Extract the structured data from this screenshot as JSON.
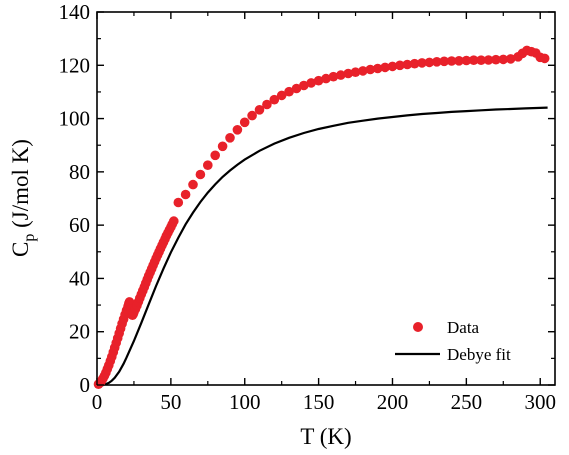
{
  "chart_data": {
    "type": "scatter",
    "title": "",
    "xlabel": "T (K)",
    "ylabel_main": "C",
    "ylabel_sub": "p",
    "ylabel_rest": " (J/mol K)",
    "xlim": [
      0,
      310
    ],
    "ylim": [
      0,
      140
    ],
    "xticks": [
      0,
      50,
      100,
      150,
      200,
      250,
      300
    ],
    "yticks": [
      0,
      20,
      40,
      60,
      80,
      100,
      120,
      140
    ],
    "legend_position": "bottom-right",
    "series": [
      {
        "name": "Data",
        "kind": "scatter",
        "color": "#e8212a",
        "points": [
          [
            1,
            0.3
          ],
          [
            2,
            0.8
          ],
          [
            3,
            1.5
          ],
          [
            4,
            2.4
          ],
          [
            5,
            3.4
          ],
          [
            6,
            4.6
          ],
          [
            7,
            6.0
          ],
          [
            8,
            7.4
          ],
          [
            9,
            9.0
          ],
          [
            10,
            10.6
          ],
          [
            11,
            12.3
          ],
          [
            12,
            14.0
          ],
          [
            13,
            15.8
          ],
          [
            14,
            17.6
          ],
          [
            15,
            19.4
          ],
          [
            16,
            21.2
          ],
          [
            17,
            23.0
          ],
          [
            18,
            24.7
          ],
          [
            19,
            26.4
          ],
          [
            20,
            28.0
          ],
          [
            21,
            29.5
          ],
          [
            21.5,
            30.6
          ],
          [
            22,
            31.2
          ],
          [
            22.5,
            30.4
          ],
          [
            23,
            28.5
          ],
          [
            23.5,
            26.8
          ],
          [
            24,
            26.2
          ],
          [
            24.5,
            26.6
          ],
          [
            25,
            27.3
          ],
          [
            26,
            28.5
          ],
          [
            27,
            29.8
          ],
          [
            28,
            31.2
          ],
          [
            29,
            32.6
          ],
          [
            30,
            34.0
          ],
          [
            31,
            35.4
          ],
          [
            32,
            36.8
          ],
          [
            33,
            38.2
          ],
          [
            34,
            39.6
          ],
          [
            35,
            41.0
          ],
          [
            36,
            42.3
          ],
          [
            37,
            43.6
          ],
          [
            38,
            44.9
          ],
          [
            39,
            46.2
          ],
          [
            40,
            47.5
          ],
          [
            41,
            48.8
          ],
          [
            42,
            50.0
          ],
          [
            43,
            51.2
          ],
          [
            44,
            52.4
          ],
          [
            45,
            53.6
          ],
          [
            46,
            54.8
          ],
          [
            47,
            56.0
          ],
          [
            48,
            57.1
          ],
          [
            49,
            58.2
          ],
          [
            50,
            59.3
          ],
          [
            51,
            60.4
          ],
          [
            52,
            61.5
          ],
          [
            55,
            68.5
          ],
          [
            60,
            71.5
          ],
          [
            65,
            75.2
          ],
          [
            70,
            79.0
          ],
          [
            75,
            82.5
          ],
          [
            80,
            86.2
          ],
          [
            85,
            89.6
          ],
          [
            90,
            92.8
          ],
          [
            95,
            95.8
          ],
          [
            100,
            98.6
          ],
          [
            105,
            101.1
          ],
          [
            110,
            103.3
          ],
          [
            115,
            105.3
          ],
          [
            120,
            107.1
          ],
          [
            125,
            108.7
          ],
          [
            130,
            110.1
          ],
          [
            135,
            111.3
          ],
          [
            140,
            112.4
          ],
          [
            145,
            113.4
          ],
          [
            150,
            114.2
          ],
          [
            155,
            115.0
          ],
          [
            160,
            115.7
          ],
          [
            165,
            116.3
          ],
          [
            170,
            116.9
          ],
          [
            175,
            117.4
          ],
          [
            180,
            117.9
          ],
          [
            185,
            118.4
          ],
          [
            190,
            118.8
          ],
          [
            195,
            119.2
          ],
          [
            200,
            119.6
          ],
          [
            205,
            120.0
          ],
          [
            210,
            120.3
          ],
          [
            215,
            120.6
          ],
          [
            220,
            120.9
          ],
          [
            225,
            121.1
          ],
          [
            230,
            121.3
          ],
          [
            235,
            121.5
          ],
          [
            240,
            121.6
          ],
          [
            245,
            121.7
          ],
          [
            250,
            121.8
          ],
          [
            255,
            121.9
          ],
          [
            260,
            121.9
          ],
          [
            265,
            122.0
          ],
          [
            270,
            122.1
          ],
          [
            275,
            122.2
          ],
          [
            280,
            122.4
          ],
          [
            285,
            123.2
          ],
          [
            288,
            124.5
          ],
          [
            291,
            125.6
          ],
          [
            294,
            125.1
          ],
          [
            297,
            124.6
          ],
          [
            300,
            123.0
          ],
          [
            303,
            122.6
          ]
        ]
      },
      {
        "name": "Debye fit",
        "kind": "line",
        "color": "#000000",
        "points": [
          [
            0,
            0
          ],
          [
            3,
            0.05
          ],
          [
            5,
            0.2
          ],
          [
            8,
            0.8
          ],
          [
            10,
            1.6
          ],
          [
            12,
            2.7
          ],
          [
            15,
            5.0
          ],
          [
            18,
            8.0
          ],
          [
            20,
            10.3
          ],
          [
            25,
            16.5
          ],
          [
            30,
            23.3
          ],
          [
            35,
            30.3
          ],
          [
            40,
            37.2
          ],
          [
            45,
            43.7
          ],
          [
            50,
            49.8
          ],
          [
            55,
            55.3
          ],
          [
            60,
            60.3
          ],
          [
            65,
            64.7
          ],
          [
            70,
            68.7
          ],
          [
            75,
            72.2
          ],
          [
            80,
            75.3
          ],
          [
            85,
            78.1
          ],
          [
            90,
            80.5
          ],
          [
            95,
            82.7
          ],
          [
            100,
            84.6
          ],
          [
            110,
            87.9
          ],
          [
            120,
            90.6
          ],
          [
            130,
            92.8
          ],
          [
            140,
            94.6
          ],
          [
            150,
            96.1
          ],
          [
            160,
            97.3
          ],
          [
            170,
            98.4
          ],
          [
            180,
            99.2
          ],
          [
            190,
            100.0
          ],
          [
            200,
            100.6
          ],
          [
            210,
            101.2
          ],
          [
            220,
            101.7
          ],
          [
            230,
            102.1
          ],
          [
            240,
            102.5
          ],
          [
            250,
            102.8
          ],
          [
            260,
            103.1
          ],
          [
            270,
            103.4
          ],
          [
            280,
            103.6
          ],
          [
            290,
            103.8
          ],
          [
            300,
            104.0
          ],
          [
            305,
            104.1
          ]
        ]
      }
    ]
  }
}
